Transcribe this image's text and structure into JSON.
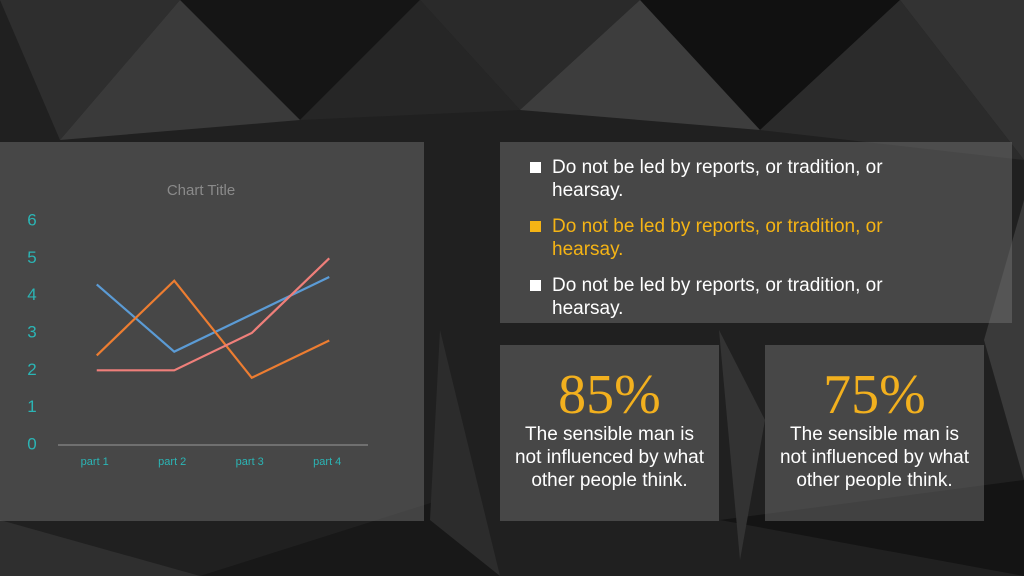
{
  "chart_data": {
    "type": "line",
    "title": "Chart Title",
    "categories": [
      "part 1",
      "part 2",
      "part 3",
      "part 4"
    ],
    "series": [
      {
        "color": "#5b9bd5",
        "values": [
          4.3,
          2.5,
          3.5,
          4.5
        ]
      },
      {
        "color": "#ed7d31",
        "values": [
          2.4,
          4.4,
          1.8,
          2.8
        ]
      },
      {
        "color": "#ef7f7a",
        "values": [
          2,
          2,
          3,
          5
        ]
      }
    ],
    "ylim": [
      0,
      6
    ],
    "yticks": [
      0,
      1,
      2,
      3,
      4,
      5,
      6
    ],
    "grid": false
  },
  "bullets": [
    "Do not be led by reports, or tradition, or hearsay.",
    "Do not be led by reports, or tradition, or hearsay.",
    "Do not be led by reports, or tradition, or hearsay."
  ],
  "stats": [
    {
      "value": "85%",
      "text": "The sensible man is not influenced by what other people think."
    },
    {
      "value": "75%",
      "text": "The sensible man is not influenced by what other people think."
    }
  ]
}
